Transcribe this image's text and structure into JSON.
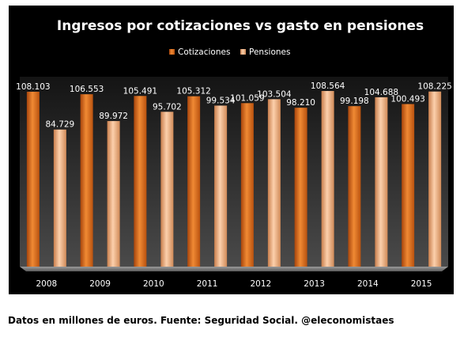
{
  "chart_data": {
    "type": "bar",
    "title": "Ingresos por cotizaciones  vs gasto en pensiones",
    "categories": [
      "2008",
      "2009",
      "2010",
      "2011",
      "2012",
      "2013",
      "2014",
      "2015"
    ],
    "series": [
      {
        "name": "Cotizaciones",
        "color": "#e8772a",
        "values": [
          108.103,
          106.553,
          105.491,
          105.312,
          101.059,
          98.21,
          99.198,
          100.493
        ],
        "labels": [
          "108.103",
          "106.553",
          "105.491",
          "105.312",
          "101.059",
          "98.210",
          "99.198",
          "100.493"
        ]
      },
      {
        "name": "Pensiones",
        "color": "#f4b07e",
        "values": [
          84.729,
          89.972,
          95.702,
          99.534,
          103.504,
          108.564,
          104.688,
          108.225
        ],
        "labels": [
          "84.729",
          "89.972",
          "95.702",
          "99.534",
          "103.504",
          "108.564",
          "104.688",
          "108.225"
        ]
      }
    ],
    "legend_position": "top-right",
    "grid": false
  },
  "footer": {
    "note": "Datos en millones de euros. Fuente: Seguridad Social. @eleconomistaes"
  }
}
